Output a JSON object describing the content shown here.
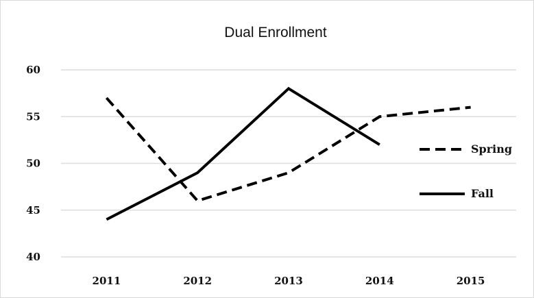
{
  "chart_data": {
    "type": "line",
    "title": "Dual Enrollment",
    "xlabel": "",
    "ylabel": "",
    "categories": [
      "2011",
      "2012",
      "2013",
      "2014",
      "2015"
    ],
    "ylim": [
      40,
      60
    ],
    "yticks": [
      40,
      45,
      50,
      55,
      60
    ],
    "grid": true,
    "legend_position": "right",
    "series": [
      {
        "name": "Spring",
        "style": "dashed",
        "color": "#000000",
        "values": [
          57,
          46,
          49,
          55,
          56
        ]
      },
      {
        "name": "Fall",
        "style": "solid",
        "color": "#000000",
        "values": [
          44,
          49,
          58,
          52,
          null
        ]
      }
    ]
  }
}
